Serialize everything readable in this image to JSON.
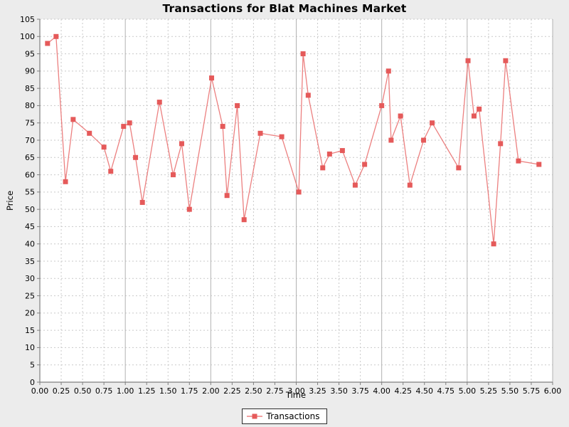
{
  "chart_data": {
    "type": "line",
    "title": "Transactions for Blat Machines Market",
    "xlabel": "Time",
    "ylabel": "Price",
    "xlim": [
      0,
      6.0
    ],
    "ylim": [
      0,
      105
    ],
    "grid": true,
    "legend_position": "bottom",
    "x_ticks": [
      "0.00",
      "0.25",
      "0.50",
      "0.75",
      "1.00",
      "1.25",
      "1.50",
      "1.75",
      "2.00",
      "2.25",
      "2.50",
      "2.75",
      "3.00",
      "3.25",
      "3.50",
      "3.75",
      "4.00",
      "4.25",
      "4.50",
      "4.75",
      "5.00",
      "5.25",
      "5.50",
      "5.75",
      "6.00"
    ],
    "y_ticks": [
      "0",
      "5",
      "10",
      "15",
      "20",
      "25",
      "30",
      "35",
      "40",
      "45",
      "50",
      "55",
      "60",
      "65",
      "70",
      "75",
      "80",
      "85",
      "90",
      "95",
      "100",
      "105"
    ],
    "series": [
      {
        "name": "Transactions",
        "marker": "square",
        "points": [
          [
            0.09,
            98
          ],
          [
            0.19,
            100
          ],
          [
            0.3,
            58
          ],
          [
            0.39,
            76
          ],
          [
            0.58,
            72
          ],
          [
            0.75,
            68
          ],
          [
            0.83,
            61
          ],
          [
            0.98,
            74
          ],
          [
            1.05,
            75
          ],
          [
            1.12,
            65
          ],
          [
            1.2,
            52
          ],
          [
            1.4,
            81
          ],
          [
            1.56,
            60
          ],
          [
            1.66,
            69
          ],
          [
            1.75,
            50
          ],
          [
            2.01,
            88
          ],
          [
            2.14,
            74
          ],
          [
            2.19,
            54
          ],
          [
            2.31,
            80
          ],
          [
            2.39,
            47
          ],
          [
            2.58,
            72
          ],
          [
            2.83,
            71
          ],
          [
            3.03,
            55
          ],
          [
            3.08,
            95
          ],
          [
            3.14,
            83
          ],
          [
            3.31,
            62
          ],
          [
            3.39,
            66
          ],
          [
            3.54,
            67
          ],
          [
            3.69,
            57
          ],
          [
            3.8,
            63
          ],
          [
            4.0,
            80
          ],
          [
            4.08,
            90
          ],
          [
            4.11,
            70
          ],
          [
            4.22,
            77
          ],
          [
            4.33,
            57
          ],
          [
            4.49,
            70
          ],
          [
            4.59,
            75
          ],
          [
            4.9,
            62
          ],
          [
            5.01,
            93
          ],
          [
            5.08,
            77
          ],
          [
            5.14,
            79
          ],
          [
            5.31,
            40
          ],
          [
            5.39,
            69
          ],
          [
            5.45,
            93
          ],
          [
            5.6,
            64
          ],
          [
            5.84,
            63
          ]
        ]
      }
    ],
    "colors": {
      "series": "#e55a5a",
      "series_line": "#e96a6a",
      "background": "#ececec",
      "plot_background": "#ffffff",
      "grid_dashed": "#c9c9c9",
      "grid_major_x": "#b2b2b2",
      "axis": "#7f7f7f",
      "text": "#000000",
      "legend_border": "#2b2b2b"
    }
  }
}
